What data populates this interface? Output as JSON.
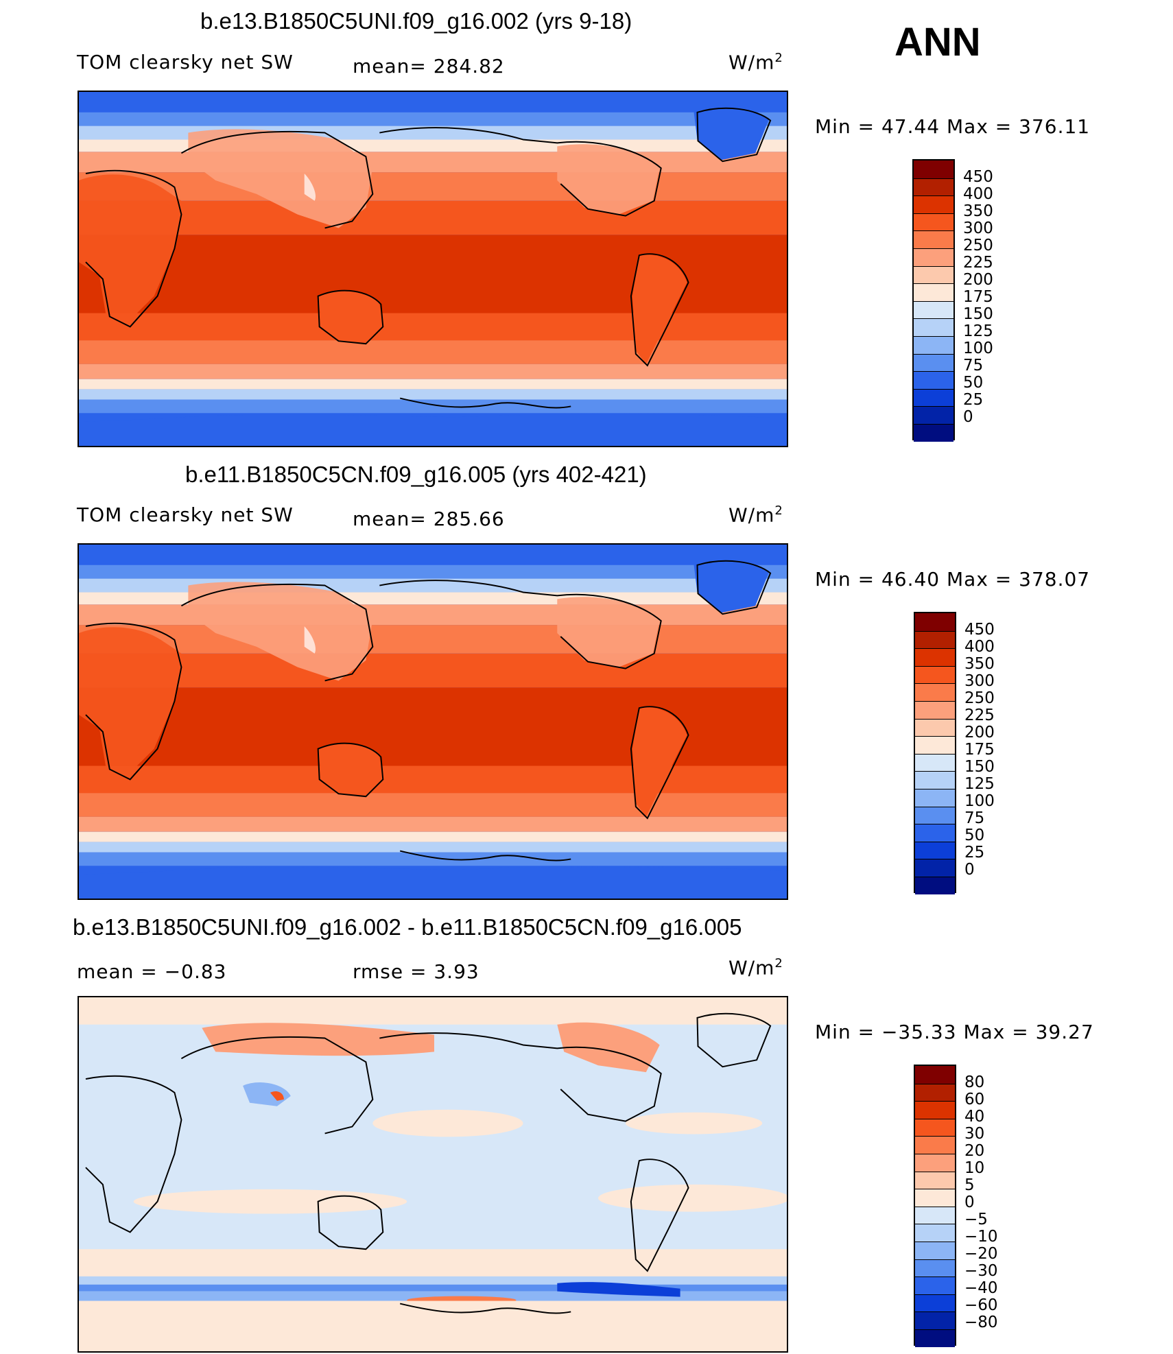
{
  "season": "ANN",
  "panels": [
    {
      "title": "b.e13.B1850C5UNI.f09_g16.002 (yrs 9-18)",
      "left_label": "TOM clearsky net SW",
      "center_label": "mean= 284.82",
      "units": "W/m",
      "units_sup": "2",
      "minmax": "Min =   47.44 Max = 376.11",
      "colorbar_labels": [
        "450",
        "400",
        "350",
        "300",
        "250",
        "225",
        "200",
        "175",
        "150",
        "125",
        "100",
        "75",
        "50",
        "25",
        "0"
      ]
    },
    {
      "title": "b.e11.B1850C5CN.f09_g16.005 (yrs 402-421)",
      "left_label": "TOM clearsky net SW",
      "center_label": "mean= 285.66",
      "units": "W/m",
      "units_sup": "2",
      "minmax": "Min =   46.40 Max = 378.07",
      "colorbar_labels": [
        "450",
        "400",
        "350",
        "300",
        "250",
        "225",
        "200",
        "175",
        "150",
        "125",
        "100",
        "75",
        "50",
        "25",
        "0"
      ]
    },
    {
      "title": "b.e13.B1850C5UNI.f09_g16.002 - b.e11.B1850C5CN.f09_g16.005",
      "left_label": "mean =   −0.83",
      "center_label": "rmse =    3.93",
      "units": "W/m",
      "units_sup": "2",
      "minmax": "Min = −35.33 Max =   39.27",
      "colorbar_labels": [
        "80",
        "60",
        "40",
        "30",
        "20",
        "10",
        "5",
        "0",
        "−5",
        "−10",
        "−20",
        "−30",
        "−40",
        "−60",
        "−80"
      ]
    }
  ],
  "colors": {
    "abs_scale": [
      "#7f0000",
      "#b22000",
      "#dc3300",
      "#f5561e",
      "#fa7b4a",
      "#fca07c",
      "#fcc9ad",
      "#fde8d8",
      "#d7e7f8",
      "#b6d2f7",
      "#8cb5f5",
      "#5a8ff0",
      "#2b63ea",
      "#0c3fd8",
      "#0223a8",
      "#000d80"
    ],
    "diff_scale": [
      "#7f0000",
      "#b22000",
      "#dc3300",
      "#f5561e",
      "#fa7b4a",
      "#fca07c",
      "#fcc9ad",
      "#fde8d8",
      "#d7e7f8",
      "#b6d2f7",
      "#8cb5f5",
      "#5a8ff0",
      "#2b63ea",
      "#0c3fd8",
      "#0223a8",
      "#000d80"
    ]
  },
  "chart_data": [
    {
      "type": "heatmap",
      "title": "b.e13.B1850C5UNI.f09_g16.002 (yrs 9-18)",
      "variable": "TOM clearsky net SW",
      "units": "W/m2",
      "mean": 284.82,
      "min": 47.44,
      "max": 376.11,
      "levels": [
        0,
        25,
        50,
        75,
        100,
        125,
        150,
        175,
        200,
        225,
        250,
        300,
        350,
        400,
        450
      ]
    },
    {
      "type": "heatmap",
      "title": "b.e11.B1850C5CN.f09_g16.005 (yrs 402-421)",
      "variable": "TOM clearsky net SW",
      "units": "W/m2",
      "mean": 285.66,
      "min": 46.4,
      "max": 378.07,
      "levels": [
        0,
        25,
        50,
        75,
        100,
        125,
        150,
        175,
        200,
        225,
        250,
        300,
        350,
        400,
        450
      ]
    },
    {
      "type": "heatmap",
      "title": "b.e13.B1850C5UNI.f09_g16.002 - b.e11.B1850C5CN.f09_g16.005",
      "units": "W/m2",
      "mean": -0.83,
      "rmse": 3.93,
      "min": -35.33,
      "max": 39.27,
      "levels": [
        -80,
        -60,
        -40,
        -30,
        -20,
        -10,
        -5,
        0,
        5,
        10,
        20,
        30,
        40,
        60,
        80
      ]
    }
  ]
}
